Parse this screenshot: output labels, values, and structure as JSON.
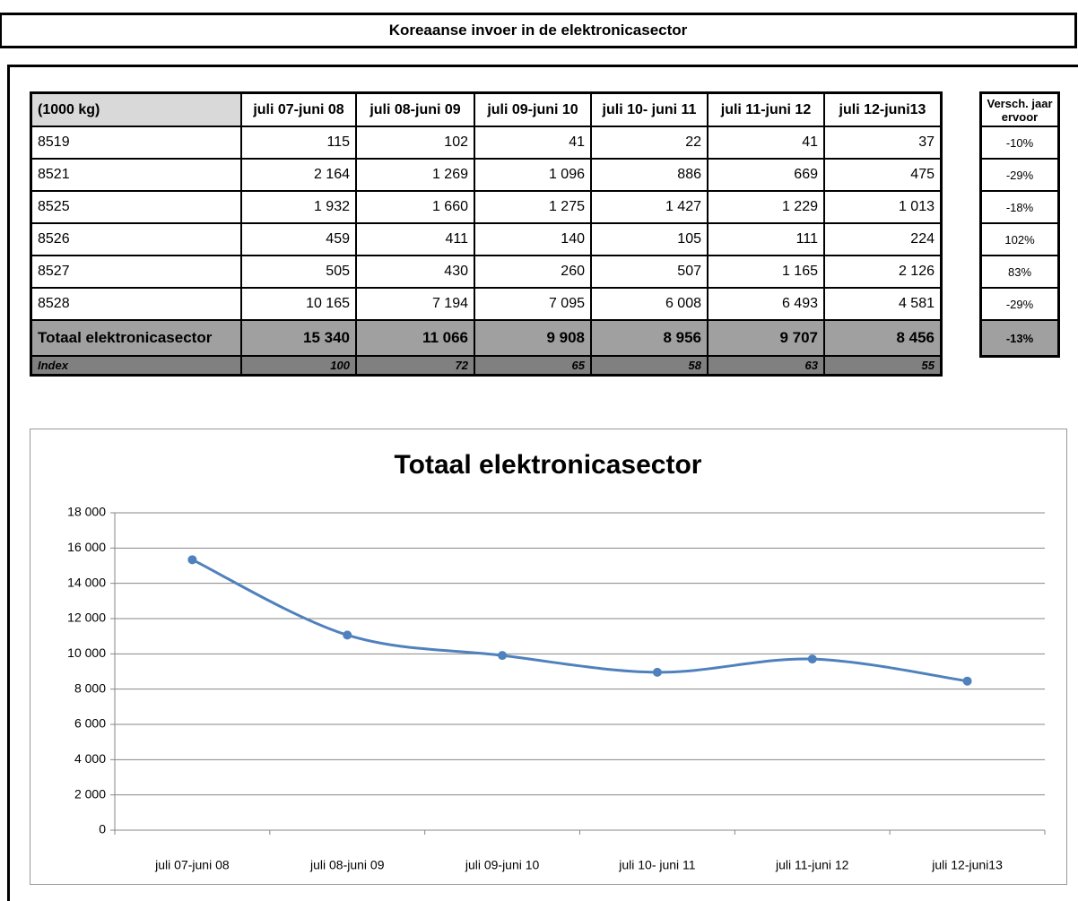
{
  "header": {
    "title": "Koreaanse invoer in de elektronicasector"
  },
  "table": {
    "columns": [
      "(1000 kg)",
      "juli 07-juni 08",
      "juli 08-juni 09",
      "juli 09-juni 10",
      "juli 10- juni 11",
      "juli 11-juni 12",
      "juli 12-juni13"
    ],
    "rows": [
      [
        "8519",
        "115",
        "102",
        "41",
        "22",
        "41",
        "37"
      ],
      [
        "8521",
        "2 164",
        "1 269",
        "1 096",
        "886",
        "669",
        "475"
      ],
      [
        "8525",
        "1 932",
        "1 660",
        "1 275",
        "1 427",
        "1 229",
        "1 013"
      ],
      [
        "8526",
        "459",
        "411",
        "140",
        "105",
        "111",
        "224"
      ],
      [
        "8527",
        "505",
        "430",
        "260",
        "507",
        "1 165",
        "2 126"
      ],
      [
        "8528",
        "10 165",
        "7 194",
        "7 095",
        "6 008",
        "6 493",
        "4 581"
      ]
    ],
    "total": [
      "Totaal elektronicasector",
      "15 340",
      "11 066",
      "9 908",
      "8 956",
      "9 707",
      "8 456"
    ],
    "index": [
      "Index",
      "100",
      "72",
      "65",
      "58",
      "63",
      "55"
    ]
  },
  "change": {
    "header": "Versch. jaar ervoor",
    "rows": [
      "-10%",
      "-29%",
      "-18%",
      "102%",
      "83%",
      "-29%"
    ],
    "total": "-13%"
  },
  "chart_data": {
    "type": "line",
    "title": "Totaal elektronicasector",
    "categories": [
      "juli 07-juni 08",
      "juli 08-juni 09",
      "juli 09-juni 10",
      "juli 10- juni 11",
      "juli 11-juni 12",
      "juli 12-juni13"
    ],
    "series": [
      {
        "name": "Totaal elektronicasector",
        "color": "#4f81bd",
        "values": [
          15340,
          11066,
          9908,
          8956,
          9707,
          8456
        ]
      }
    ],
    "ylim": [
      0,
      18000
    ],
    "yticks": [
      0,
      {
        "value": 2000,
        "label": "2 000"
      },
      {
        "value": 4000,
        "label": "4 000"
      },
      {
        "value": 6000,
        "label": "6 000"
      },
      {
        "value": 8000,
        "label": "8 000"
      },
      {
        "value": 10000,
        "label": "10 000"
      },
      {
        "value": 12000,
        "label": "12 000"
      },
      {
        "value": 14000,
        "label": "14 000"
      },
      {
        "value": 16000,
        "label": "16 000"
      },
      {
        "value": 18000,
        "label": "18 000"
      }
    ],
    "grid": true,
    "smooth": true
  }
}
